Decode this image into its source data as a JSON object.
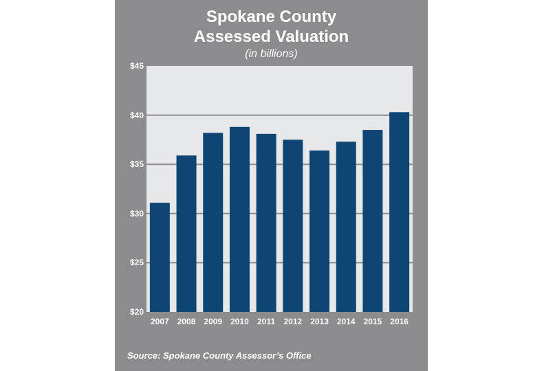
{
  "chart_data": {
    "type": "bar",
    "title_line1": "Spokane County",
    "title_line2": "Assessed Valuation",
    "subtitle": "(in billions)",
    "source": "Source: Spokane County Assessor’s Office",
    "categories": [
      "2007",
      "2008",
      "2009",
      "2010",
      "2011",
      "2012",
      "2013",
      "2014",
      "2015",
      "2016"
    ],
    "values": [
      31.1,
      35.9,
      38.2,
      38.8,
      38.1,
      37.5,
      36.4,
      37.3,
      38.5,
      40.3
    ],
    "ylim": [
      20,
      45
    ],
    "yticks": [
      {
        "value": 45,
        "label": "$45"
      },
      {
        "value": 40,
        "label": "$40"
      },
      {
        "value": 35,
        "label": "$35"
      },
      {
        "value": 30,
        "label": "$30"
      },
      {
        "value": 25,
        "label": "$25"
      },
      {
        "value": 20,
        "label": "$20"
      }
    ],
    "grid": true,
    "legend": "none",
    "colors": {
      "bar": "#0f4573",
      "panel": "#8c8c8e",
      "plot_background": "#e7e8ea",
      "grid": "#8c8c8e",
      "text": "#ffffff"
    }
  }
}
